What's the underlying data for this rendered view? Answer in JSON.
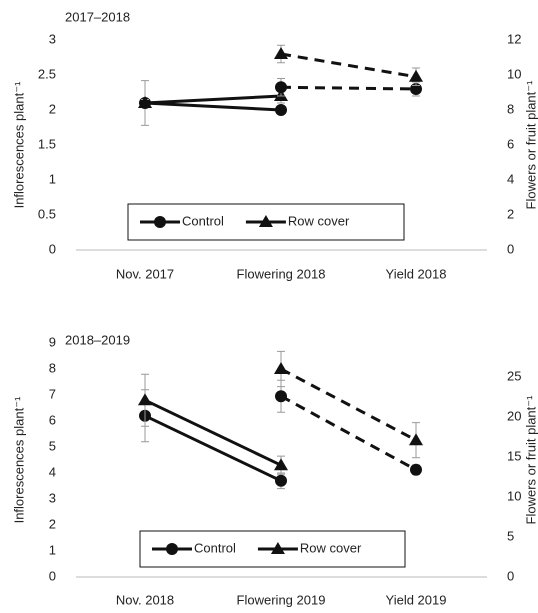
{
  "chart_data": [
    {
      "type": "line",
      "title": "2017–2018",
      "categories": [
        "Nov. 2017",
        "Flowering 2018",
        "Yield 2018"
      ],
      "ylabel": "Inflorescences plant⁻¹",
      "y2label": "Flowers or fruit plant⁻¹",
      "ylim": [
        0,
        3
      ],
      "yticks": [
        0,
        0.5,
        1,
        1.5,
        2,
        2.5,
        3
      ],
      "y2lim": [
        0,
        12
      ],
      "y2ticks": [
        0,
        2,
        4,
        6,
        8,
        10,
        12
      ],
      "series": [
        {
          "name": "Control",
          "marker": "circle",
          "color": "#111111",
          "values": [
            2.1,
            2.0,
            null
          ],
          "errors": [
            0.32,
            0.05,
            null
          ]
        },
        {
          "name": "Row cover",
          "marker": "triangle",
          "color": "#111111",
          "values": [
            2.1,
            2.2,
            null
          ],
          "errors": [
            0.05,
            0.1,
            null
          ]
        },
        {
          "marker": "circle",
          "color": "#111111",
          "axis": "y2",
          "dash": true,
          "values": [
            null,
            9.3,
            9.2
          ],
          "errors": [
            null,
            0.5,
            0.4
          ]
        },
        {
          "marker": "triangle",
          "color": "#111111",
          "axis": "y2",
          "dash": true,
          "values": [
            null,
            11.2,
            9.9
          ],
          "errors": [
            null,
            0.5,
            0.5
          ]
        }
      ]
    },
    {
      "type": "line",
      "title": "2018–2019",
      "categories": [
        "Nov. 2018",
        "Flowering 2019",
        "Yield 2019"
      ],
      "ylabel": "Inflorescences plant⁻¹",
      "y2label": "Flowers or fruit plant⁻¹",
      "ylim": [
        0,
        9
      ],
      "yticks": [
        0,
        1,
        2,
        3,
        4,
        5,
        6,
        7,
        8,
        9
      ],
      "y2lim": [
        0,
        29.25
      ],
      "y2ticks": [
        0,
        5,
        10,
        15,
        20,
        25
      ],
      "series": [
        {
          "name": "Control",
          "marker": "circle",
          "color": "#111111",
          "values": [
            6.2,
            3.7,
            null
          ],
          "errors": [
            1.0,
            0.3,
            null
          ]
        },
        {
          "name": "Row cover",
          "marker": "triangle",
          "color": "#111111",
          "values": [
            6.8,
            4.3,
            null
          ],
          "errors": [
            1.0,
            0.35,
            null
          ]
        },
        {
          "marker": "circle",
          "color": "#111111",
          "axis": "y2",
          "dash": true,
          "values": [
            null,
            22.6,
            13.4
          ],
          "errors": [
            null,
            2.0,
            0.6
          ]
        },
        {
          "marker": "triangle",
          "color": "#111111",
          "axis": "y2",
          "dash": true,
          "values": [
            null,
            26.0,
            17.1
          ],
          "errors": [
            null,
            2.2,
            2.2
          ]
        }
      ]
    }
  ]
}
